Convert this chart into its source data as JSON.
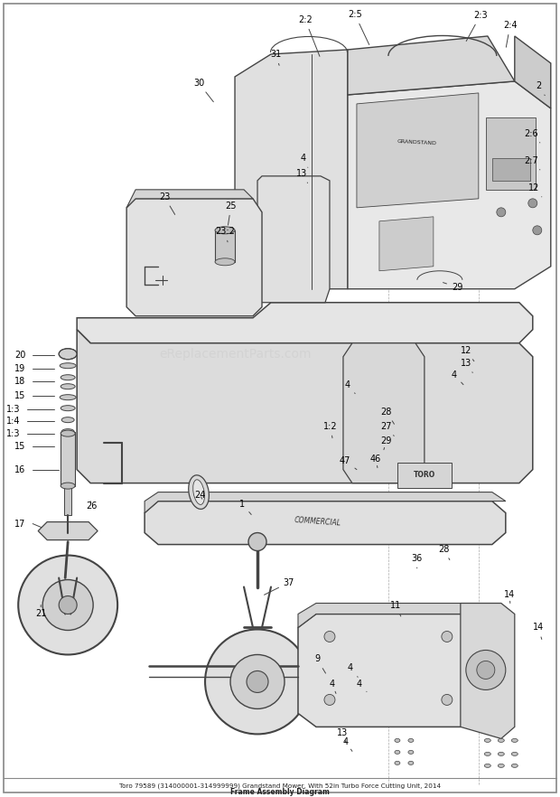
{
  "bg_color": "#ffffff",
  "line_color": "#444444",
  "text_color": "#000000",
  "border_color": "#aaaaaa",
  "watermark": "eReplacementParts.com",
  "title_line1": "Toro 79589 (314000001-314999999) Grandstand Mower, With 52in Turbo Force Cutting Unit, 2014",
  "title_line2": "Frame Assembly Diagram",
  "dashed_line_color": "#999999",
  "part_label_fontsize": 7.0
}
